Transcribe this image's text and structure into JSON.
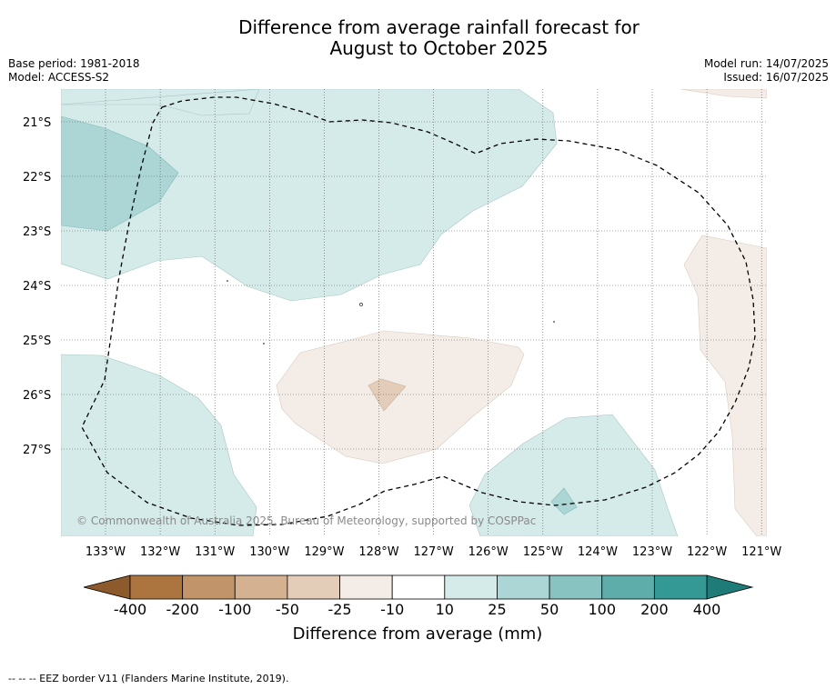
{
  "title": {
    "line1": "Difference from average rainfall forecast for",
    "line2": "August to October 2025"
  },
  "info_left": {
    "base_period": "Base period: 1981-2018",
    "model": "Model: ACCESS-S2"
  },
  "info_right": {
    "model_run": "Model run: 14/07/2025",
    "issued": "Issued: 16/07/2025"
  },
  "map": {
    "lat_labels": [
      "21°S",
      "22°S",
      "23°S",
      "24°S",
      "25°S",
      "26°S",
      "27°S"
    ],
    "lon_labels": [
      "133°W",
      "132°W",
      "131°W",
      "130°W",
      "129°W",
      "128°W",
      "127°W",
      "126°W",
      "125°W",
      "124°W",
      "123°W",
      "122°W",
      "121°W"
    ],
    "copyright": "© Commonwealth of Australia 2025, Bureau of Meteorology, supported by COSPPac"
  },
  "legend": {
    "labels": [
      "-400",
      "-200",
      "-100",
      "-50",
      "-25",
      "-10",
      "10",
      "25",
      "50",
      "100",
      "200",
      "400"
    ],
    "colors": [
      "#ac7540",
      "#c19469",
      "#d4b291",
      "#e3cdb9",
      "#f4ede7",
      "#ffffff",
      "#d4ebea",
      "#abd6d5",
      "#88c3c2",
      "#5fadab",
      "#349895"
    ],
    "low_extend_color": "#8c5a2b",
    "high_extend_color": "#1e7b78",
    "xlabel": "Difference from average (mm)"
  },
  "footer": "--  --  -- EEZ border V11 (Flanders Marine Institute, 2019)."
}
